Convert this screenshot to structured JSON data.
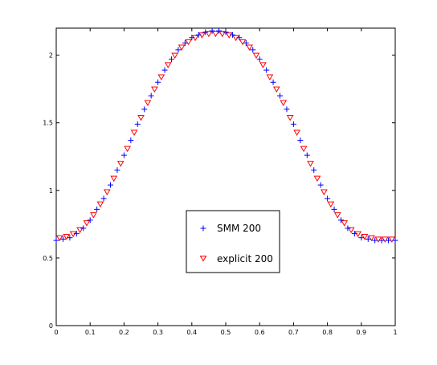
{
  "chart_data": {
    "type": "scatter",
    "xlim": [
      0,
      1
    ],
    "ylim": [
      0,
      2.2
    ],
    "x_ticks": [
      0,
      0.1,
      0.2,
      0.3,
      0.4,
      0.5,
      0.6,
      0.7,
      0.8,
      0.9,
      1
    ],
    "x_tick_labels": [
      "0",
      "0.1",
      "0.2",
      "0.3",
      "0.4",
      "0.5",
      "0.6",
      "0.7",
      "0.8",
      "0.9",
      "1"
    ],
    "y_ticks": [
      0,
      0.5,
      1,
      1.5,
      2
    ],
    "y_tick_labels": [
      "0",
      "0.5",
      "1",
      "1.5",
      "2"
    ],
    "grid": false,
    "legend_position": "lower-center",
    "series": [
      {
        "name": "SMM 200",
        "marker": "plus",
        "color": "#0000ff",
        "x": [
          0,
          0.02,
          0.04,
          0.06,
          0.08,
          0.1,
          0.12,
          0.14,
          0.16,
          0.18,
          0.2,
          0.22,
          0.24,
          0.26,
          0.28,
          0.3,
          0.32,
          0.34,
          0.36,
          0.38,
          0.4,
          0.42,
          0.44,
          0.46,
          0.48,
          0.5,
          0.52,
          0.54,
          0.56,
          0.58,
          0.6,
          0.62,
          0.64,
          0.66,
          0.68,
          0.7,
          0.72,
          0.74,
          0.76,
          0.78,
          0.8,
          0.82,
          0.84,
          0.86,
          0.88,
          0.9,
          0.92,
          0.94,
          0.96,
          0.98,
          1.0
        ],
        "y": [
          0.63,
          0.64,
          0.65,
          0.68,
          0.72,
          0.78,
          0.86,
          0.94,
          1.04,
          1.15,
          1.26,
          1.37,
          1.49,
          1.6,
          1.7,
          1.8,
          1.89,
          1.97,
          2.04,
          2.09,
          2.13,
          2.15,
          2.17,
          2.18,
          2.18,
          2.17,
          2.15,
          2.13,
          2.09,
          2.04,
          1.97,
          1.89,
          1.8,
          1.7,
          1.6,
          1.49,
          1.37,
          1.26,
          1.15,
          1.04,
          0.94,
          0.86,
          0.78,
          0.72,
          0.68,
          0.65,
          0.64,
          0.63,
          0.63,
          0.63,
          0.63
        ]
      },
      {
        "name": "explicit 200",
        "marker": "triangle-down",
        "color": "#ff0000",
        "x": [
          0.01,
          0.03,
          0.05,
          0.07,
          0.09,
          0.11,
          0.13,
          0.15,
          0.17,
          0.19,
          0.21,
          0.23,
          0.25,
          0.27,
          0.29,
          0.31,
          0.33,
          0.35,
          0.37,
          0.39,
          0.41,
          0.43,
          0.45,
          0.47,
          0.49,
          0.51,
          0.53,
          0.55,
          0.57,
          0.59,
          0.61,
          0.63,
          0.65,
          0.67,
          0.69,
          0.71,
          0.73,
          0.75,
          0.77,
          0.79,
          0.81,
          0.83,
          0.85,
          0.87,
          0.89,
          0.91,
          0.93,
          0.95,
          0.97,
          0.99
        ],
        "y": [
          0.65,
          0.66,
          0.68,
          0.71,
          0.76,
          0.82,
          0.9,
          0.99,
          1.09,
          1.2,
          1.31,
          1.43,
          1.54,
          1.65,
          1.75,
          1.84,
          1.93,
          2.0,
          2.06,
          2.1,
          2.13,
          2.15,
          2.16,
          2.16,
          2.16,
          2.15,
          2.13,
          2.1,
          2.06,
          2.0,
          1.93,
          1.84,
          1.75,
          1.65,
          1.54,
          1.43,
          1.31,
          1.2,
          1.09,
          0.99,
          0.9,
          0.82,
          0.76,
          0.71,
          0.68,
          0.66,
          0.65,
          0.64,
          0.64,
          0.64
        ]
      }
    ]
  }
}
